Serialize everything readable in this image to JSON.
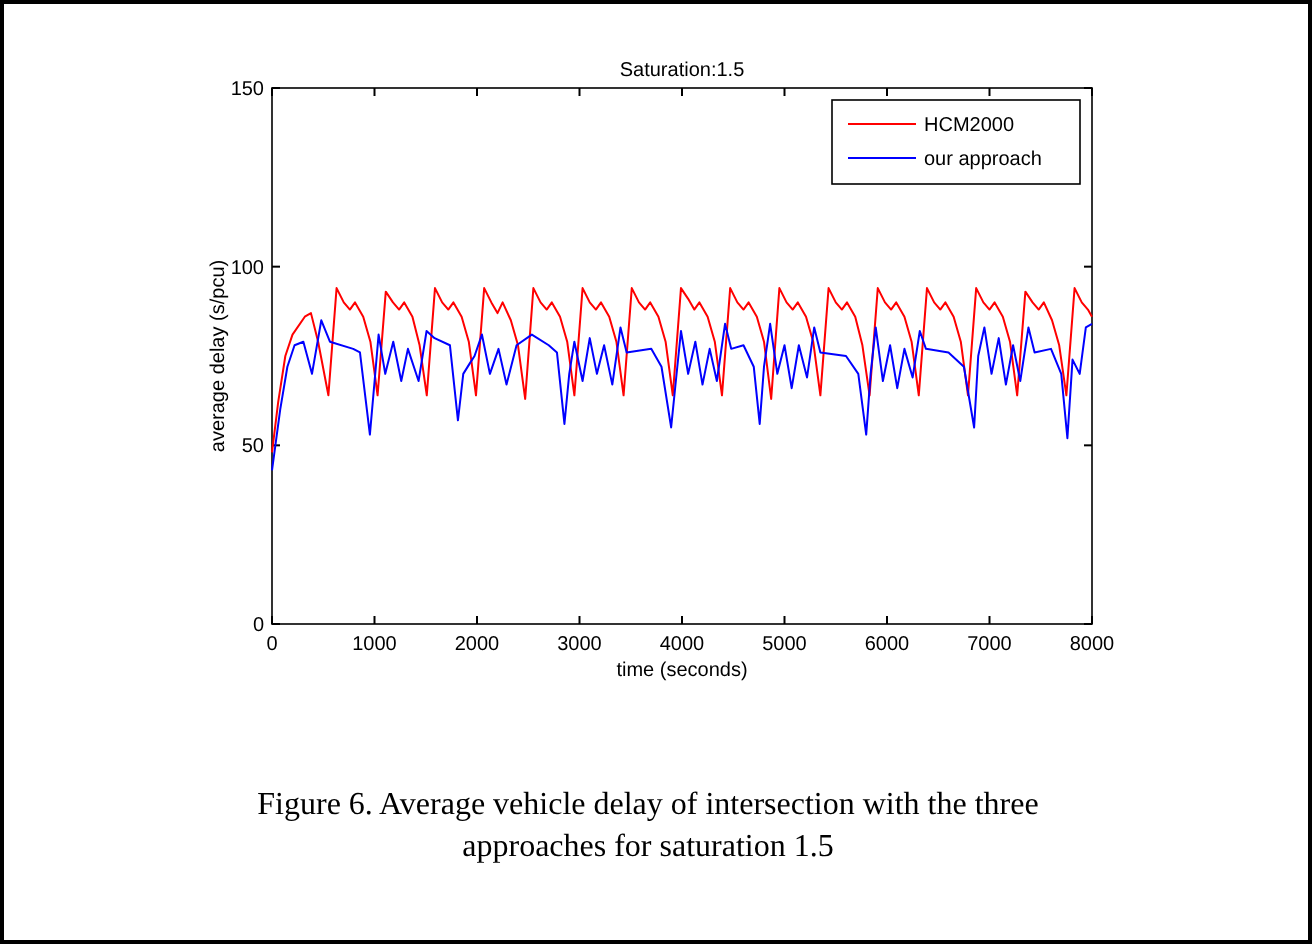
{
  "chart_data": {
    "type": "line",
    "title": "Saturation:1.5",
    "xlabel": "time (seconds)",
    "ylabel": "average delay (s/pcu)",
    "annotations": [
      "Figure 6. Average vehicle delay of intersection with the three approaches for saturation 1.5"
    ],
    "xlim": [
      0,
      8000
    ],
    "ylim": [
      0,
      150
    ],
    "xticks": [
      0,
      1000,
      2000,
      3000,
      4000,
      5000,
      6000,
      7000,
      8000
    ],
    "yticks": [
      0,
      50,
      100,
      150
    ],
    "grid": false,
    "legend": "top right",
    "line_style": "solid",
    "marker": "none",
    "series": [
      {
        "name": "HCM2000",
        "color": "#ff0000",
        "x": [
          0,
          60,
          130,
          200,
          320,
          380,
          450,
          550,
          630,
          700,
          760,
          810,
          890,
          960,
          1030,
          1110,
          1180,
          1240,
          1290,
          1370,
          1440,
          1510,
          1590,
          1660,
          1720,
          1770,
          1850,
          1920,
          1990,
          2070,
          2140,
          2200,
          2250,
          2330,
          2400,
          2470,
          2550,
          2620,
          2680,
          2730,
          2810,
          2880,
          2950,
          3030,
          3100,
          3160,
          3210,
          3290,
          3360,
          3430,
          3510,
          3580,
          3640,
          3690,
          3770,
          3840,
          3910,
          3990,
          4060,
          4120,
          4170,
          4250,
          4320,
          4390,
          4470,
          4540,
          4600,
          4650,
          4730,
          4800,
          4870,
          4950,
          5020,
          5080,
          5130,
          5210,
          5280,
          5350,
          5430,
          5500,
          5560,
          5610,
          5690,
          5760,
          5830,
          5910,
          5980,
          6040,
          6090,
          6170,
          6240,
          6310,
          6390,
          6460,
          6520,
          6570,
          6650,
          6720,
          6790,
          6870,
          6940,
          7000,
          7050,
          7130,
          7200,
          7270,
          7350,
          7420,
          7480,
          7530,
          7610,
          7680,
          7750,
          7830,
          7900,
          7960,
          8000
        ],
        "values": [
          48,
          62,
          75,
          81,
          86,
          87,
          79,
          64,
          94,
          90,
          88,
          90,
          86,
          79,
          64,
          93,
          90,
          88,
          90,
          86,
          78,
          64,
          94,
          90,
          88,
          90,
          86,
          79,
          64,
          94,
          90,
          87,
          90,
          85,
          78,
          63,
          94,
          90,
          88,
          90,
          86,
          79,
          64,
          94,
          90,
          88,
          90,
          86,
          79,
          64,
          94,
          90,
          88,
          90,
          86,
          79,
          64,
          94,
          91,
          88,
          90,
          86,
          79,
          64,
          94,
          90,
          88,
          90,
          86,
          79,
          63,
          94,
          90,
          88,
          90,
          86,
          79,
          64,
          94,
          90,
          88,
          90,
          86,
          78,
          64,
          94,
          90,
          88,
          90,
          86,
          79,
          64,
          94,
          90,
          88,
          90,
          86,
          79,
          64,
          94,
          90,
          88,
          90,
          86,
          79,
          64,
          93,
          90,
          88,
          90,
          85,
          78,
          64,
          94,
          90,
          88,
          86
        ]
      },
      {
        "name": "our approach",
        "color": "#0000ff",
        "x": [
          0,
          80,
          150,
          220,
          306,
          390,
          481,
          565,
          792,
          858,
          955,
          1001,
          1040,
          1105,
          1183,
          1261,
          1326,
          1430,
          1508,
          1586,
          1736,
          1814,
          1866,
          1931,
          1976,
          2048,
          2126,
          2210,
          2288,
          2386,
          2535,
          2700,
          2780,
          2853,
          2900,
          2950,
          3030,
          3100,
          3170,
          3240,
          3320,
          3400,
          3460,
          3700,
          3800,
          3894,
          3940,
          3990,
          4060,
          4130,
          4200,
          4270,
          4340,
          4420,
          4480,
          4600,
          4700,
          4758,
          4800,
          4860,
          4930,
          5000,
          5070,
          5140,
          5220,
          5290,
          5350,
          5600,
          5720,
          5797,
          5840,
          5890,
          5960,
          6030,
          6100,
          6170,
          6250,
          6320,
          6380,
          6600,
          6750,
          6850,
          6890,
          6950,
          7020,
          7090,
          7160,
          7230,
          7300,
          7380,
          7440,
          7600,
          7700,
          7760,
          7810,
          7880,
          7940,
          8000
        ],
        "values": [
          43,
          60,
          72,
          78,
          79,
          70,
          85,
          79,
          77,
          76,
          53,
          68,
          81,
          70,
          79,
          68,
          77,
          68,
          82,
          80,
          78,
          57,
          70,
          73,
          75,
          81,
          70,
          77,
          67,
          78,
          81,
          78,
          76,
          56,
          70,
          79,
          68,
          80,
          70,
          78,
          67,
          83,
          76,
          77,
          72,
          55,
          68,
          82,
          70,
          79,
          67,
          77,
          68,
          84,
          77,
          78,
          72,
          56,
          72,
          84,
          70,
          78,
          66,
          78,
          69,
          83,
          76,
          75,
          70,
          53,
          70,
          83,
          68,
          78,
          66,
          77,
          69,
          82,
          77,
          76,
          72,
          55,
          75,
          83,
          70,
          80,
          67,
          78,
          68,
          83,
          76,
          77,
          70,
          52,
          74,
          70,
          83,
          84
        ]
      }
    ]
  }
}
